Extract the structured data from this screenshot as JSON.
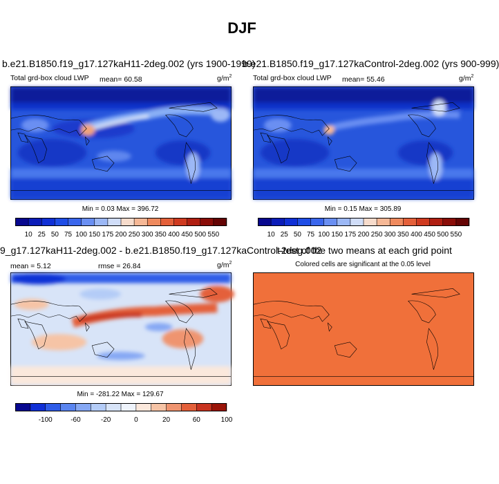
{
  "title": "DJF",
  "panels": [
    {
      "title": "b.e21.B1850.f19_g17.127kaH11-2deg.002 (yrs 1900-1999)",
      "left_label": "Total grd-box cloud LWP",
      "stat": "mean=  60.58",
      "units": "g/m",
      "units_sup": "2",
      "minmax": "Min =   0.03 Max = 396.72",
      "colorbar": {
        "colors": [
          "#08088f",
          "#0b1cb8",
          "#1030d6",
          "#1f4de6",
          "#3a66ec",
          "#6a8ff2",
          "#9cb8f6",
          "#d0ddf8",
          "#f7dccc",
          "#f6b896",
          "#ef8a5e",
          "#e4603a",
          "#cf3a20",
          "#b01f12",
          "#8a0d08",
          "#650404"
        ],
        "ticks": [
          "10",
          "25",
          "50",
          "75",
          "100",
          "150",
          "175",
          "200",
          "250",
          "300",
          "350",
          "400",
          "450",
          "500",
          "550"
        ]
      }
    },
    {
      "title": "b.e21.B1850.f19_g17.127kaControl-2deg.002 (yrs 900-999)",
      "left_label": "Total grd-box cloud LWP",
      "stat": "mean=  55.46",
      "units": "g/m",
      "units_sup": "2",
      "minmax": "Min =   0.15 Max = 305.89",
      "colorbar": {
        "colors": [
          "#08088f",
          "#0b1cb8",
          "#1030d6",
          "#1f4de6",
          "#3a66ec",
          "#6a8ff2",
          "#9cb8f6",
          "#d0ddf8",
          "#f7dccc",
          "#f6b896",
          "#ef8a5e",
          "#e4603a",
          "#cf3a20",
          "#b01f12",
          "#8a0d08",
          "#650404"
        ],
        "ticks": [
          "10",
          "25",
          "50",
          "75",
          "100",
          "150",
          "175",
          "200",
          "250",
          "300",
          "350",
          "400",
          "450",
          "500",
          "550"
        ]
      }
    },
    {
      "title": "9_g17.127kaH11-2deg.002 - b.e21.B1850.f19_g17.127kaControl-2deg.002",
      "left_label": "mean =   5.12",
      "stat": "rmse =  26.84",
      "units": "g/m",
      "units_sup": "2",
      "minmax": "Min = -281.22 Max = 129.67",
      "colorbar": {
        "colors": [
          "#08088f",
          "#1030d6",
          "#2f5ce8",
          "#5a85f0",
          "#86a8f4",
          "#b4ccf7",
          "#d8e4f8",
          "#eef3fb",
          "#fbe8dc",
          "#f6c4a6",
          "#ef9470",
          "#e4603a",
          "#c83420",
          "#9a1408"
        ],
        "ticks": [
          "",
          "-100",
          "",
          "-60",
          "",
          "-20",
          "",
          "0",
          "",
          "20",
          "",
          "60",
          "",
          "100",
          ""
        ]
      }
    },
    {
      "title": "t-test of the two means at each grid point",
      "subtitle": "Colored cells are significant at the 0.05 level"
    }
  ]
}
